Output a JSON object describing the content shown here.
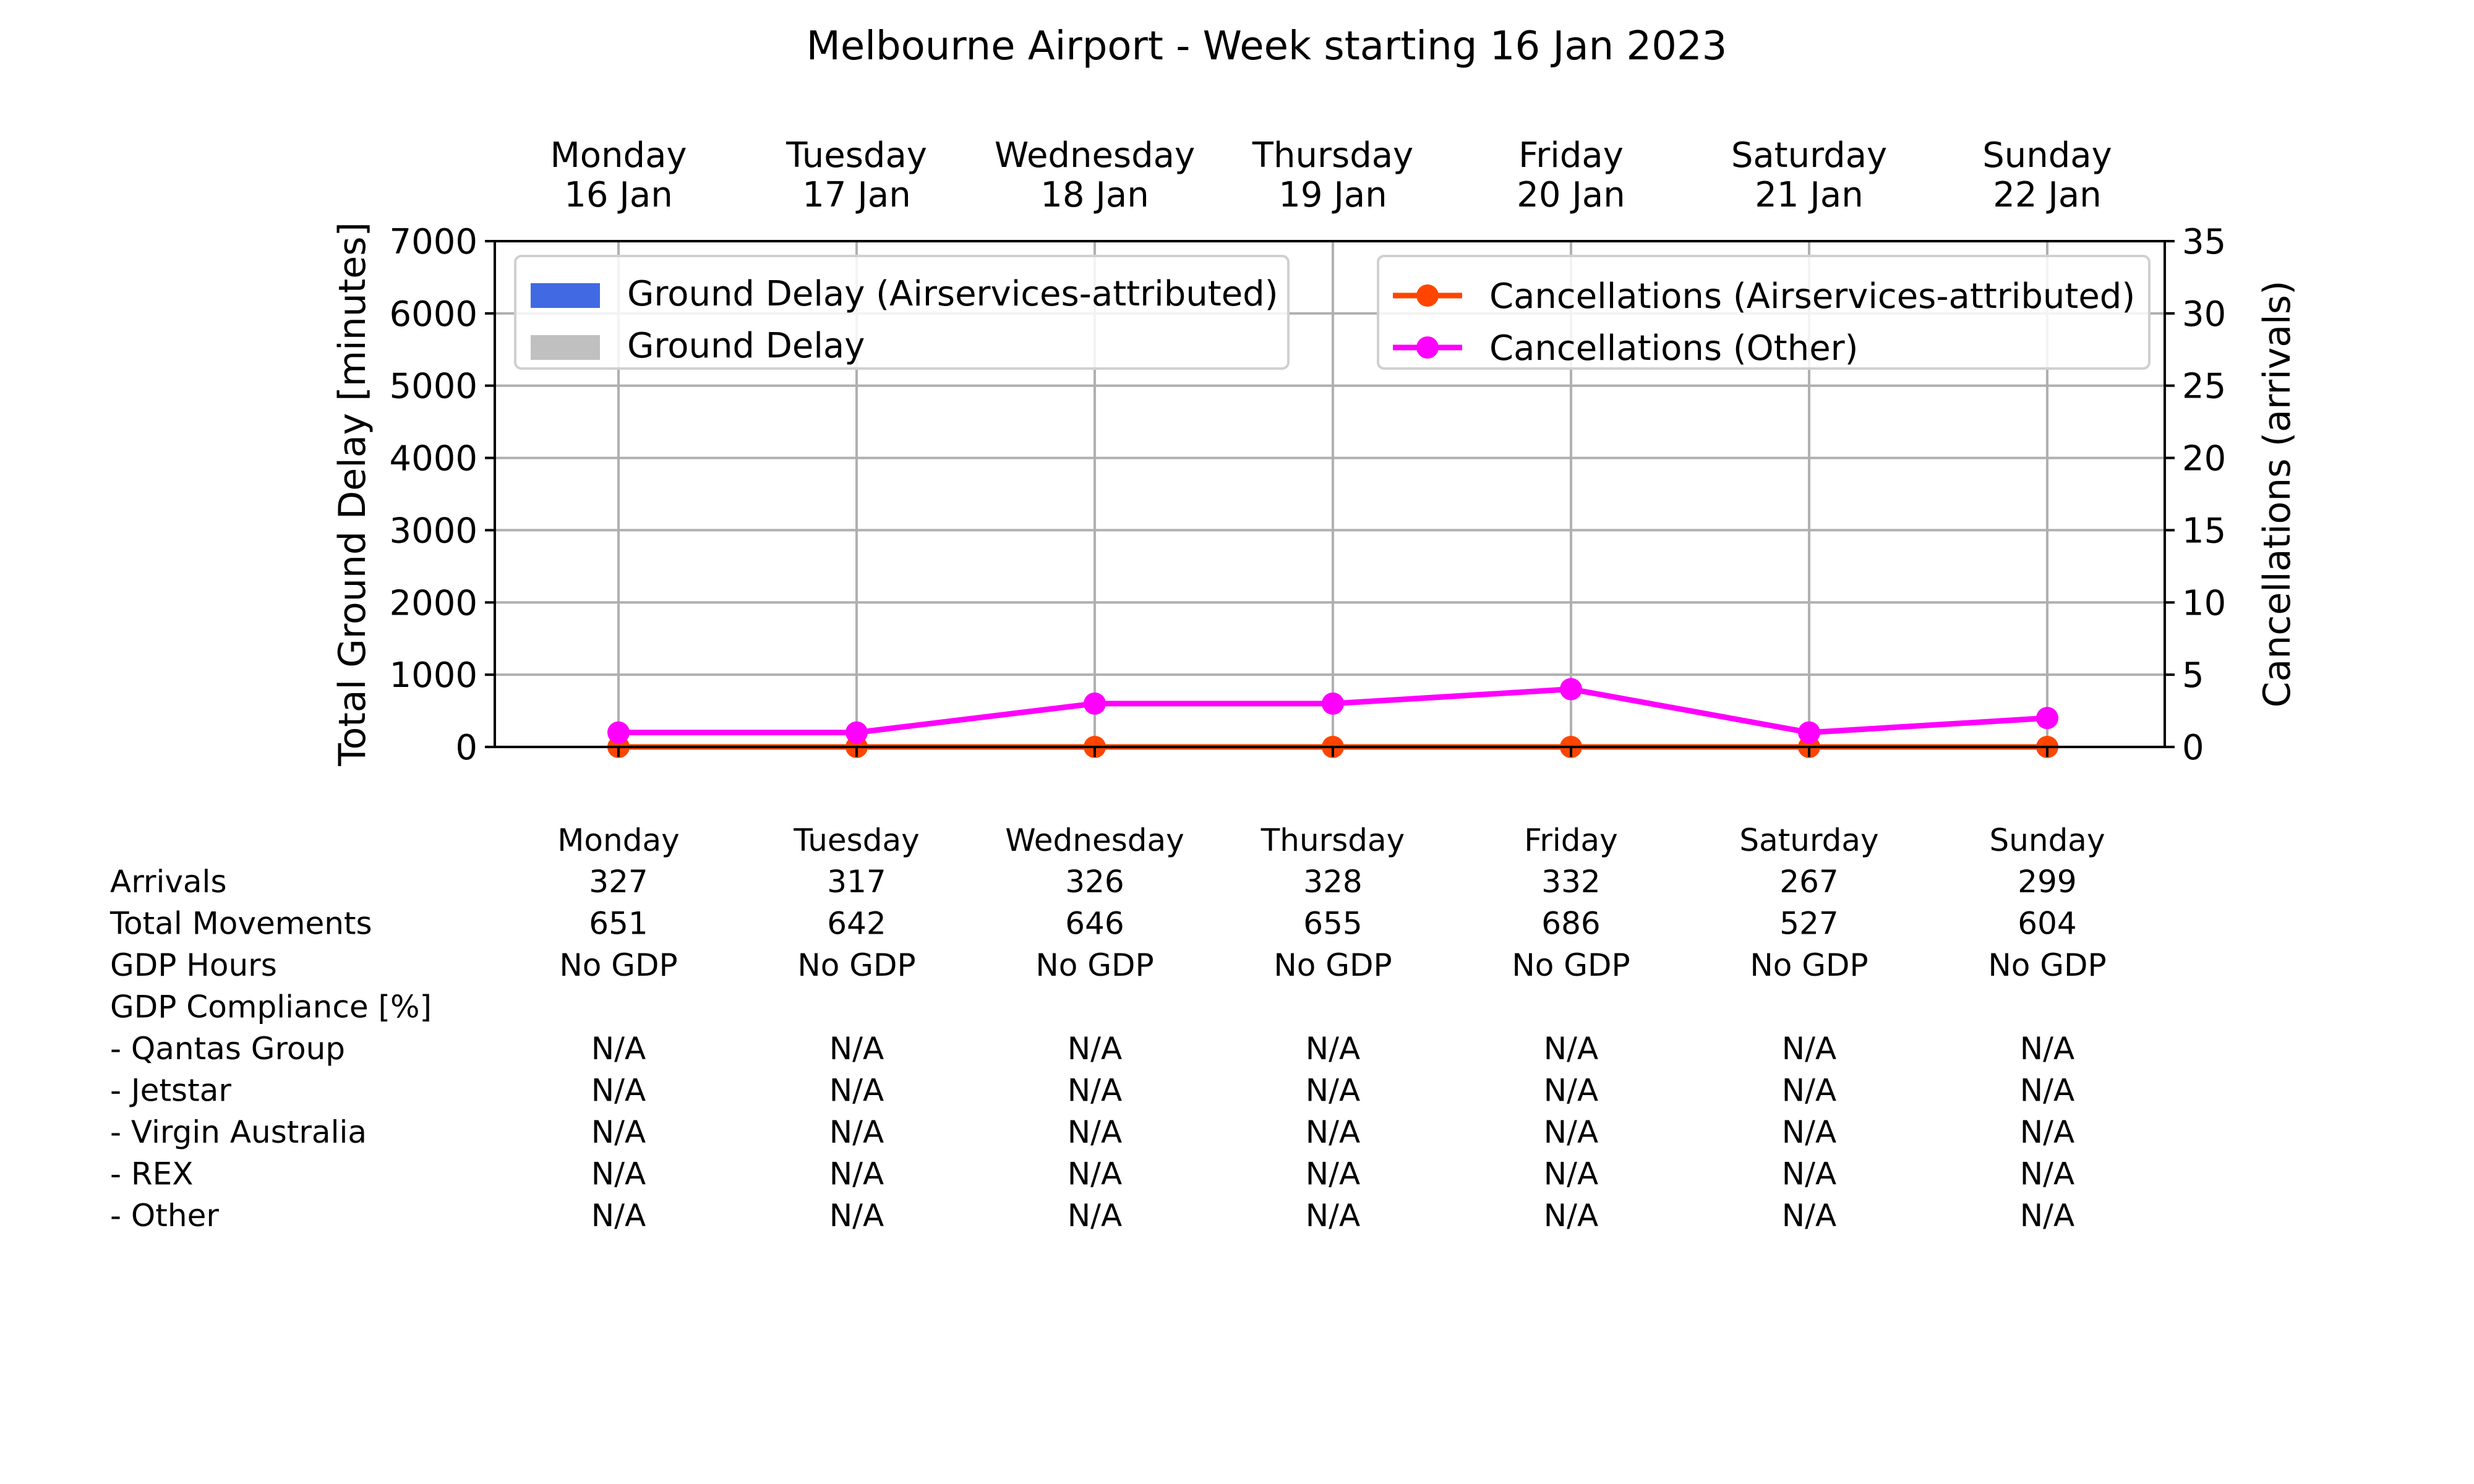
{
  "chart_data": {
    "type": "bar+line",
    "title": "Melbourne Airport - Week starting 16 Jan 2023",
    "categories": [
      {
        "day": "Monday",
        "date": "16 Jan"
      },
      {
        "day": "Tuesday",
        "date": "17 Jan"
      },
      {
        "day": "Wednesday",
        "date": "18 Jan"
      },
      {
        "day": "Thursday",
        "date": "19 Jan"
      },
      {
        "day": "Friday",
        "date": "20 Jan"
      },
      {
        "day": "Saturday",
        "date": "21 Jan"
      },
      {
        "day": "Sunday",
        "date": "22 Jan"
      }
    ],
    "left_axis": {
      "label": "Total Ground Delay [minutes]",
      "ylim": [
        0,
        7000
      ],
      "ticks": [
        "0",
        "1000",
        "2000",
        "3000",
        "4000",
        "5000",
        "6000",
        "7000"
      ]
    },
    "right_axis": {
      "label": "Cancellations (arrivals)",
      "ylim": [
        0,
        35
      ],
      "ticks": [
        "0",
        "5",
        "10",
        "15",
        "20",
        "25",
        "30",
        "35"
      ]
    },
    "bar_series": [
      {
        "name": "Ground Delay (Airservices-attributed)",
        "color": "#4169E1",
        "values": [
          0,
          0,
          0,
          0,
          0,
          0,
          0
        ]
      },
      {
        "name": "Ground Delay",
        "color": "#C0C0C0",
        "values": [
          0,
          0,
          0,
          0,
          0,
          0,
          0
        ]
      }
    ],
    "line_series": [
      {
        "name": "Cancellations (Airservices-attributed)",
        "color": "#FF4500",
        "values": [
          0,
          0,
          0,
          0,
          0,
          0,
          0
        ]
      },
      {
        "name": "Cancellations (Other)",
        "color": "#FF00FF",
        "values": [
          1,
          1,
          3,
          3,
          4,
          1,
          2
        ]
      }
    ],
    "grid": true,
    "legends": [
      "upper-left",
      "upper-right"
    ]
  },
  "table": {
    "headers": [
      "Monday",
      "Tuesday",
      "Wednesday",
      "Thursday",
      "Friday",
      "Saturday",
      "Sunday"
    ],
    "rows": [
      {
        "label": "Arrivals",
        "values": [
          "327",
          "317",
          "326",
          "328",
          "332",
          "267",
          "299"
        ]
      },
      {
        "label": "Total Movements",
        "values": [
          "651",
          "642",
          "646",
          "655",
          "686",
          "527",
          "604"
        ]
      },
      {
        "label": "GDP Hours",
        "values": [
          "No GDP",
          "No GDP",
          "No GDP",
          "No GDP",
          "No GDP",
          "No GDP",
          "No GDP"
        ]
      },
      {
        "label": "GDP Compliance [%]",
        "values": []
      },
      {
        "label": "  - Qantas Group",
        "values": [
          "N/A",
          "N/A",
          "N/A",
          "N/A",
          "N/A",
          "N/A",
          "N/A"
        ]
      },
      {
        "label": "  - Jetstar",
        "values": [
          "N/A",
          "N/A",
          "N/A",
          "N/A",
          "N/A",
          "N/A",
          "N/A"
        ]
      },
      {
        "label": "  - Virgin Australia",
        "values": [
          "N/A",
          "N/A",
          "N/A",
          "N/A",
          "N/A",
          "N/A",
          "N/A"
        ]
      },
      {
        "label": "  - REX",
        "values": [
          "N/A",
          "N/A",
          "N/A",
          "N/A",
          "N/A",
          "N/A",
          "N/A"
        ]
      },
      {
        "label": "  - Other",
        "values": [
          "N/A",
          "N/A",
          "N/A",
          "N/A",
          "N/A",
          "N/A",
          "N/A"
        ]
      }
    ]
  }
}
